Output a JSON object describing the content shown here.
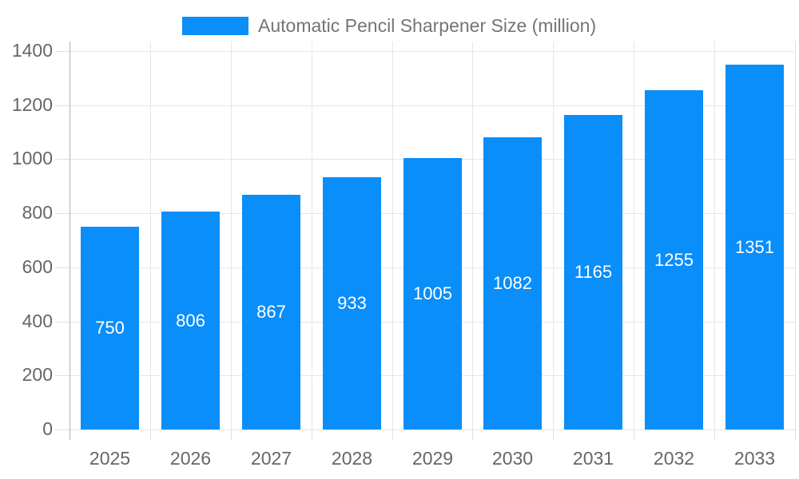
{
  "chart_data": {
    "type": "bar",
    "title": "Automatic Pencil Sharpener Size (million)",
    "categories": [
      "2025",
      "2026",
      "2027",
      "2028",
      "2029",
      "2030",
      "2031",
      "2032",
      "2033"
    ],
    "values": [
      750,
      806,
      867,
      933,
      1005,
      1082,
      1165,
      1255,
      1351
    ],
    "series": [
      {
        "name": "Automatic Pencil Sharpener Size (million)",
        "values": [
          750,
          806,
          867,
          933,
          1005,
          1082,
          1165,
          1255,
          1351
        ]
      }
    ],
    "xlabel": "",
    "ylabel": "",
    "ylim": [
      0,
      1400
    ],
    "ytick_step": 200,
    "ytick_labels": [
      "0",
      "200",
      "400",
      "600",
      "800",
      "1000",
      "1200",
      "1400"
    ],
    "grid": true,
    "legend_position": "top",
    "data_labels": "inside-center-white",
    "colors": {
      "bar": "#0a8ef9",
      "gridline": "#e6e6e6",
      "axis_line": "#b3b3b3",
      "axis_text": "#666666",
      "legend_text": "#757575",
      "value_label_text": "#ffffff",
      "background": "#ffffff"
    }
  }
}
